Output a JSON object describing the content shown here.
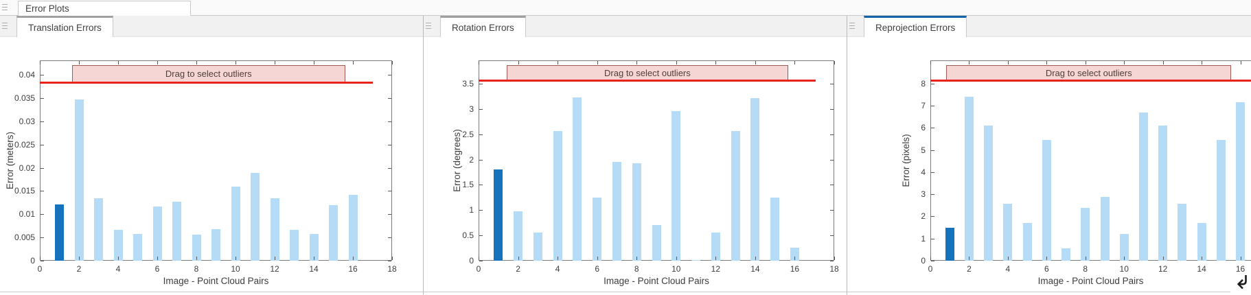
{
  "toolstrip": {
    "tab": "Error Plots"
  },
  "panels": [
    {
      "tab": "Translation Errors",
      "selected": false
    },
    {
      "tab": "Rotation Errors",
      "selected": false
    },
    {
      "tab": "Reprojection Errors",
      "selected": true
    }
  ],
  "bottom_right_icon": "down-left-arrow",
  "colors": {
    "bar_light": "#B5DCF7",
    "bar_dark": "#1473BC",
    "threshold_red": "#E8231A",
    "banner_fill": "#F6D6D4",
    "banner_border": "#9C5B55",
    "banner_text": "#4E3E3C",
    "tab_active_accent": "#1463A9",
    "tab_inactive_accent": "#A0A0A0",
    "axis_box": "#7A7A7A",
    "text": "#3C3C3C"
  },
  "chart_data": [
    {
      "type": "bar",
      "title": "Translation Errors",
      "xlabel": "Image - Point Cloud Pairs",
      "ylabel": "Error (meters)",
      "banner_label": "Drag to select outliers",
      "categories": [
        1,
        2,
        3,
        4,
        5,
        6,
        7,
        8,
        9,
        10,
        11,
        12,
        13,
        14,
        15,
        16
      ],
      "values": [
        0.0121,
        0.0347,
        0.0135,
        0.0067,
        0.0058,
        0.0116,
        0.0127,
        0.0056,
        0.0068,
        0.016,
        0.0189,
        0.0135,
        0.0067,
        0.0058,
        0.0119,
        0.0141
      ],
      "selected_pair": 1,
      "threshold": 0.0384,
      "xlim": [
        0,
        18
      ],
      "ylim": [
        0,
        0.0431
      ],
      "xticks": [
        0,
        2,
        4,
        6,
        8,
        10,
        12,
        14,
        16,
        18
      ],
      "yticks": [
        0,
        0.005,
        0.01,
        0.015,
        0.02,
        0.025,
        0.03,
        0.035,
        0.04
      ],
      "ytick_labels": [
        "0",
        "0.005",
        "0.01",
        "0.015",
        "0.02",
        "0.025",
        "0.03",
        "0.035",
        "0.04"
      ],
      "banner_span": [
        1.65,
        15.6
      ],
      "line_span": [
        0,
        17
      ],
      "legend": "none",
      "grid": false
    },
    {
      "type": "bar",
      "title": "Rotation Errors",
      "xlabel": "Image - Point Cloud Pairs",
      "ylabel": "Error (degrees)",
      "banner_label": "Drag to select outliers",
      "categories": [
        1,
        2,
        3,
        4,
        5,
        6,
        7,
        8,
        9,
        10,
        11,
        12,
        13,
        14,
        15,
        16
      ],
      "values": [
        1.8,
        0.98,
        0.56,
        2.56,
        3.23,
        1.25,
        1.95,
        1.92,
        0.7,
        2.95,
        0.02,
        0.56,
        2.56,
        3.22,
        1.25,
        0.26
      ],
      "selected_pair": 1,
      "threshold": 3.57,
      "xlim": [
        0,
        18
      ],
      "ylim": [
        0,
        3.96
      ],
      "xticks": [
        0,
        2,
        4,
        6,
        8,
        10,
        12,
        14,
        16,
        18
      ],
      "yticks": [
        0,
        0.5,
        1,
        1.5,
        2,
        2.5,
        3,
        3.5
      ],
      "ytick_labels": [
        "0",
        "0.5",
        "1",
        "1.5",
        "2",
        "2.5",
        "3",
        "3.5"
      ],
      "banner_span": [
        1.42,
        15.67
      ],
      "line_span": [
        0,
        17.06
      ],
      "legend": "none",
      "grid": false
    },
    {
      "type": "bar",
      "title": "Reprojection Errors",
      "xlabel": "Image - Point Cloud Pairs",
      "ylabel": "Error (pixels)",
      "banner_label": "Drag to select outliers",
      "categories": [
        1,
        2,
        3,
        4,
        5,
        6,
        7,
        8,
        9,
        10,
        11,
        12,
        13,
        14,
        15,
        16
      ],
      "values": [
        1.5,
        7.4,
        6.1,
        2.58,
        1.7,
        5.45,
        0.55,
        2.4,
        2.88,
        1.2,
        6.7,
        6.1,
        2.58,
        1.7,
        5.45,
        7.17
      ],
      "selected_pair": 1,
      "threshold": 8.16,
      "xlim": [
        0,
        18
      ],
      "ylim": [
        0,
        9.05
      ],
      "xticks": [
        0,
        2,
        4,
        6,
        8,
        10,
        12,
        14,
        16,
        18
      ],
      "yticks": [
        0,
        1,
        2,
        3,
        4,
        5,
        6,
        7,
        8
      ],
      "ytick_labels": [
        "0",
        "1",
        "2",
        "3",
        "4",
        "5",
        "6",
        "7",
        "8"
      ],
      "banner_span": [
        0.82,
        15.53
      ],
      "line_span": [
        0,
        18
      ],
      "legend": "none",
      "grid": false
    }
  ]
}
